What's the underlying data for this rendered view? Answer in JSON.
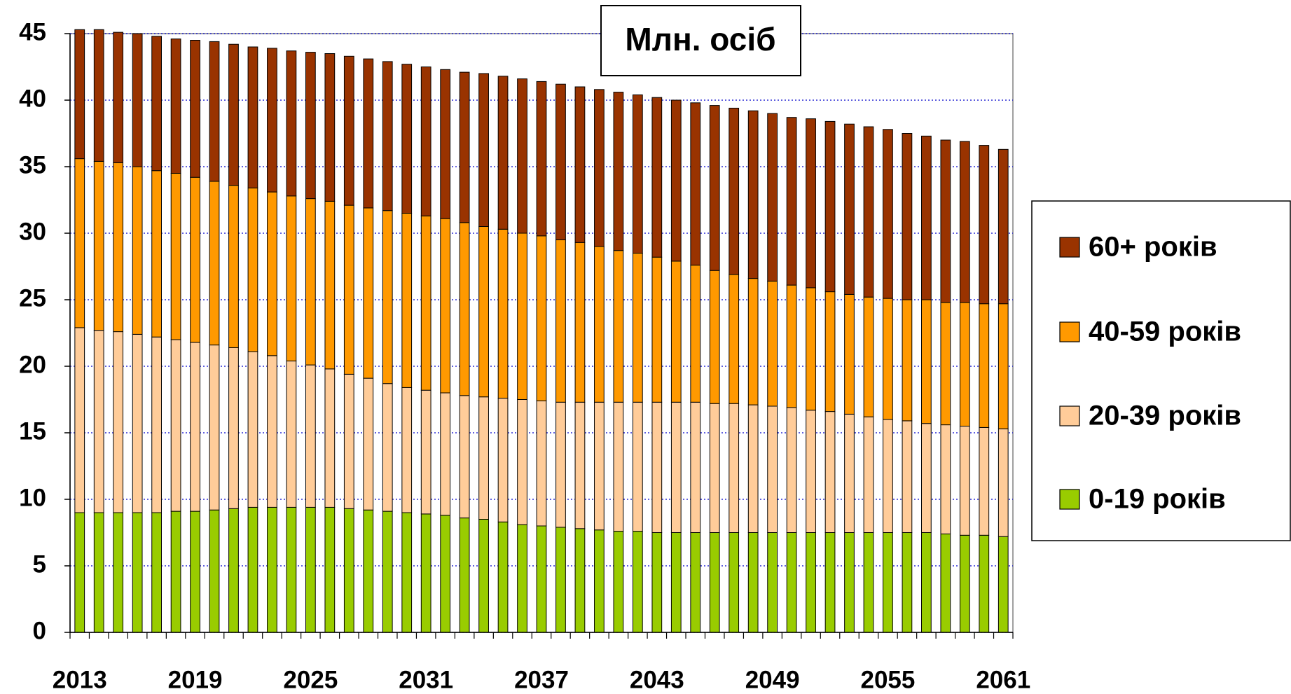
{
  "chart_data": {
    "type": "stacked_bar",
    "title": "Млн. осіб",
    "categories": [
      2013,
      null,
      null,
      null,
      null,
      null,
      2019,
      null,
      null,
      null,
      null,
      null,
      2025,
      null,
      null,
      null,
      null,
      null,
      2031,
      null,
      null,
      null,
      null,
      null,
      2037,
      null,
      null,
      null,
      null,
      null,
      2043,
      null,
      null,
      null,
      null,
      null,
      2049,
      null,
      null,
      null,
      null,
      null,
      2055,
      null,
      null,
      null,
      null,
      null,
      2061
    ],
    "series": [
      {
        "name": "0-19 років",
        "color": "#99cc00",
        "values": [
          9.0,
          9.0,
          9.0,
          9.0,
          9.0,
          9.1,
          9.1,
          9.2,
          9.3,
          9.4,
          9.4,
          9.4,
          9.4,
          9.4,
          9.3,
          9.2,
          9.1,
          9.0,
          8.9,
          8.8,
          8.6,
          8.5,
          8.3,
          8.1,
          8.0,
          7.9,
          7.8,
          7.7,
          7.6,
          7.6,
          7.5,
          7.5,
          7.5,
          7.5,
          7.5,
          7.5,
          7.5,
          7.5,
          7.5,
          7.5,
          7.5,
          7.5,
          7.5,
          7.5,
          7.5,
          7.4,
          7.3,
          7.3,
          7.2
        ]
      },
      {
        "name": "20-39 років",
        "color": "#ffcc99",
        "values": [
          13.9,
          13.7,
          13.6,
          13.4,
          13.2,
          12.9,
          12.7,
          12.4,
          12.1,
          11.7,
          11.4,
          11.0,
          10.7,
          10.4,
          10.1,
          9.9,
          9.6,
          9.4,
          9.3,
          9.2,
          9.2,
          9.2,
          9.3,
          9.4,
          9.4,
          9.4,
          9.5,
          9.6,
          9.7,
          9.7,
          9.8,
          9.8,
          9.8,
          9.7,
          9.7,
          9.6,
          9.5,
          9.4,
          9.2,
          9.1,
          8.9,
          8.7,
          8.5,
          8.4,
          8.2,
          8.2,
          8.2,
          8.1,
          8.1
        ]
      },
      {
        "name": "40-59 років",
        "color": "#ff9900",
        "values": [
          12.7,
          12.7,
          12.7,
          12.6,
          12.5,
          12.5,
          12.4,
          12.3,
          12.2,
          12.3,
          12.3,
          12.4,
          12.5,
          12.6,
          12.7,
          12.8,
          13.0,
          13.1,
          13.1,
          13.1,
          13.0,
          12.8,
          12.7,
          12.5,
          12.4,
          12.2,
          12.0,
          11.7,
          11.4,
          11.2,
          10.9,
          10.6,
          10.3,
          10.0,
          9.7,
          9.5,
          9.4,
          9.2,
          9.2,
          9.0,
          9.0,
          9.0,
          9.1,
          9.1,
          9.3,
          9.2,
          9.3,
          9.3,
          9.4
        ]
      },
      {
        "name": "60+ років",
        "color": "#993300",
        "values": [
          9.7,
          9.9,
          9.8,
          10.0,
          10.1,
          10.1,
          10.3,
          10.5,
          10.6,
          10.6,
          10.8,
          10.9,
          11.0,
          11.1,
          11.2,
          11.2,
          11.2,
          11.2,
          11.2,
          11.2,
          11.3,
          11.5,
          11.5,
          11.6,
          11.6,
          11.7,
          11.7,
          11.8,
          11.9,
          11.9,
          12.0,
          12.1,
          12.2,
          12.4,
          12.5,
          12.6,
          12.6,
          12.6,
          12.7,
          12.8,
          12.8,
          12.8,
          12.7,
          12.5,
          12.3,
          12.2,
          12.1,
          11.9,
          11.6
        ]
      }
    ],
    "ylim": [
      0,
      45
    ],
    "yticks": [
      0,
      5,
      10,
      15,
      20,
      25,
      30,
      35,
      40,
      45
    ],
    "grid": true,
    "legend": "right"
  }
}
